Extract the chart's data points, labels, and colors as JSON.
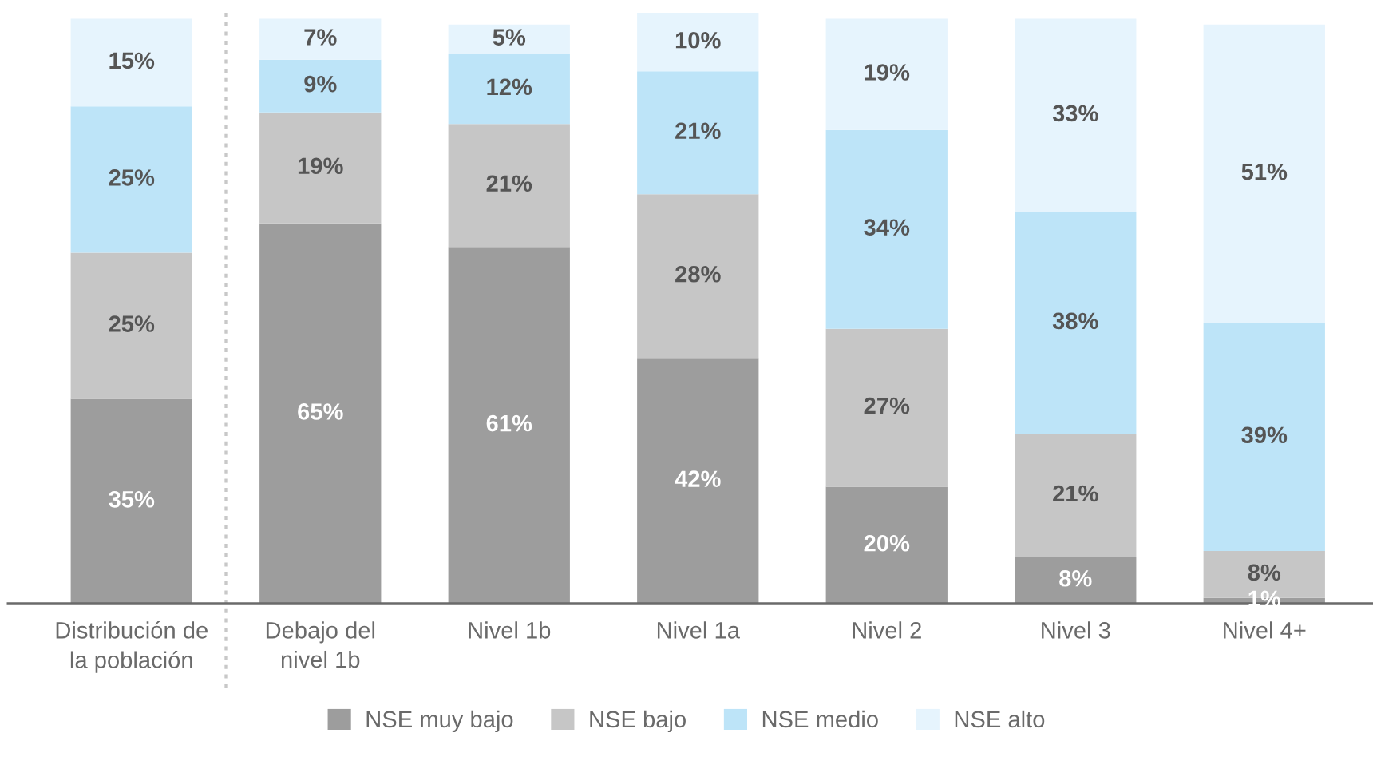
{
  "chart_data": {
    "type": "bar",
    "stacked": true,
    "categories": [
      "Distribución de\nla población",
      "Debajo del\nnivel 1b",
      "Nivel 1b",
      "Nivel 1a",
      "Nivel 2",
      "Nivel 3",
      "Nivel 4+"
    ],
    "series": [
      {
        "name": "NSE muy bajo",
        "color": "#9d9d9d",
        "values": [
          35,
          65,
          61,
          42,
          20,
          8,
          1
        ],
        "value_labels": [
          "35%",
          "65%",
          "61%",
          "42%",
          "20%",
          "8%",
          "1%"
        ]
      },
      {
        "name": "NSE bajo",
        "color": "#c6c6c6",
        "values": [
          25,
          19,
          21,
          28,
          27,
          21,
          8
        ],
        "value_labels": [
          "25%",
          "19%",
          "21%",
          "28%",
          "27%",
          "21%",
          "8%"
        ]
      },
      {
        "name": "NSE medio",
        "color": "#bde4f8",
        "values": [
          25,
          9,
          12,
          21,
          34,
          38,
          39
        ],
        "value_labels": [
          "25%",
          "9%",
          "12%",
          "21%",
          "34%",
          "38%",
          "39%"
        ]
      },
      {
        "name": "NSE alto",
        "color": "#e6f4fd",
        "values": [
          15,
          7,
          5,
          10,
          19,
          33,
          51
        ],
        "value_labels": [
          "15%",
          "7%",
          "5%",
          "10%",
          "19%",
          "33%",
          "51%"
        ]
      }
    ],
    "legend": "bottom",
    "tick_labels": "x"
  }
}
